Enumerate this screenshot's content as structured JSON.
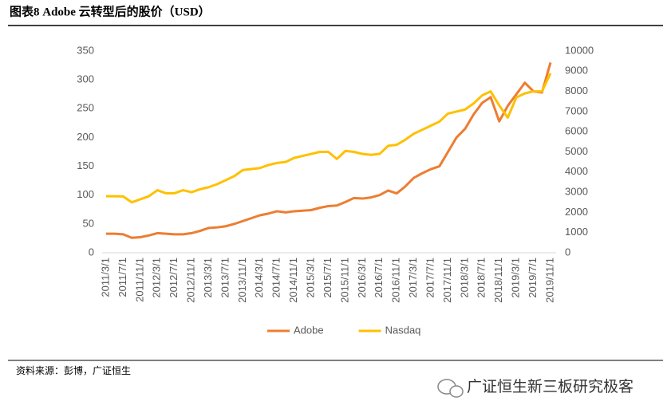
{
  "chart_data": {
    "type": "line",
    "title": "图表8 Adobe 云转型后的股价（USD）",
    "source": "资料来源：彭博，广证恒生",
    "watermark": "广证恒生新三板研究极客",
    "categories": [
      "2011/3/1",
      null,
      "2011/7/1",
      null,
      "2011/11/1",
      null,
      "2012/3/1",
      null,
      "2012/7/1",
      null,
      "2012/11/1",
      null,
      "2013/3/1",
      null,
      "2013/7/1",
      null,
      "2013/11/1",
      null,
      "2014/3/1",
      null,
      "2014/7/1",
      null,
      "2014/11/1",
      null,
      "2015/3/1",
      null,
      "2015/7/1",
      null,
      "2015/11/1",
      null,
      "2016/3/1",
      null,
      "2016/7/1",
      null,
      "2016/11/1",
      null,
      "2017/3/1",
      null,
      "2017/7/1",
      null,
      "2017/11/1",
      null,
      "2018/3/1",
      null,
      "2018/7/1",
      null,
      "2018/11/1",
      null,
      "2019/3/1",
      null,
      "2019/7/1",
      null,
      "2019/11/1"
    ],
    "series": [
      {
        "name": "Adobe",
        "color": "#ed7d31",
        "axis": "y",
        "values": [
          33,
          33,
          32,
          26,
          27,
          30,
          34,
          33,
          32,
          32,
          34,
          38,
          43,
          44,
          46,
          50,
          55,
          60,
          65,
          68,
          72,
          70,
          72,
          73,
          74,
          78,
          81,
          82,
          88,
          95,
          94,
          96,
          100,
          108,
          103,
          115,
          130,
          138,
          145,
          150,
          175,
          200,
          215,
          240,
          260,
          270,
          228,
          255,
          275,
          295,
          280,
          278,
          330
        ]
      },
      {
        "name": "Nasdaq",
        "color": "#ffc000",
        "axis": "y2",
        "values": [
          2800,
          2800,
          2790,
          2500,
          2650,
          2800,
          3100,
          2950,
          2950,
          3100,
          3000,
          3150,
          3250,
          3400,
          3600,
          3800,
          4100,
          4150,
          4200,
          4350,
          4450,
          4500,
          4700,
          4800,
          4900,
          5000,
          5000,
          4650,
          5050,
          5000,
          4900,
          4850,
          4900,
          5300,
          5350,
          5600,
          5900,
          6100,
          6300,
          6500,
          6900,
          7000,
          7100,
          7400,
          7800,
          8000,
          7300,
          6700,
          7700,
          7900,
          8000,
          8000,
          8900
        ]
      }
    ],
    "ylim": [
      0,
      350
    ],
    "yticks": [
      0,
      50,
      100,
      150,
      200,
      250,
      300,
      350
    ],
    "y2lim": [
      0,
      10000
    ],
    "y2ticks": [
      0,
      1000,
      2000,
      3000,
      4000,
      5000,
      6000,
      7000,
      8000,
      9000,
      10000
    ],
    "grid": false,
    "legend": "bottom"
  }
}
